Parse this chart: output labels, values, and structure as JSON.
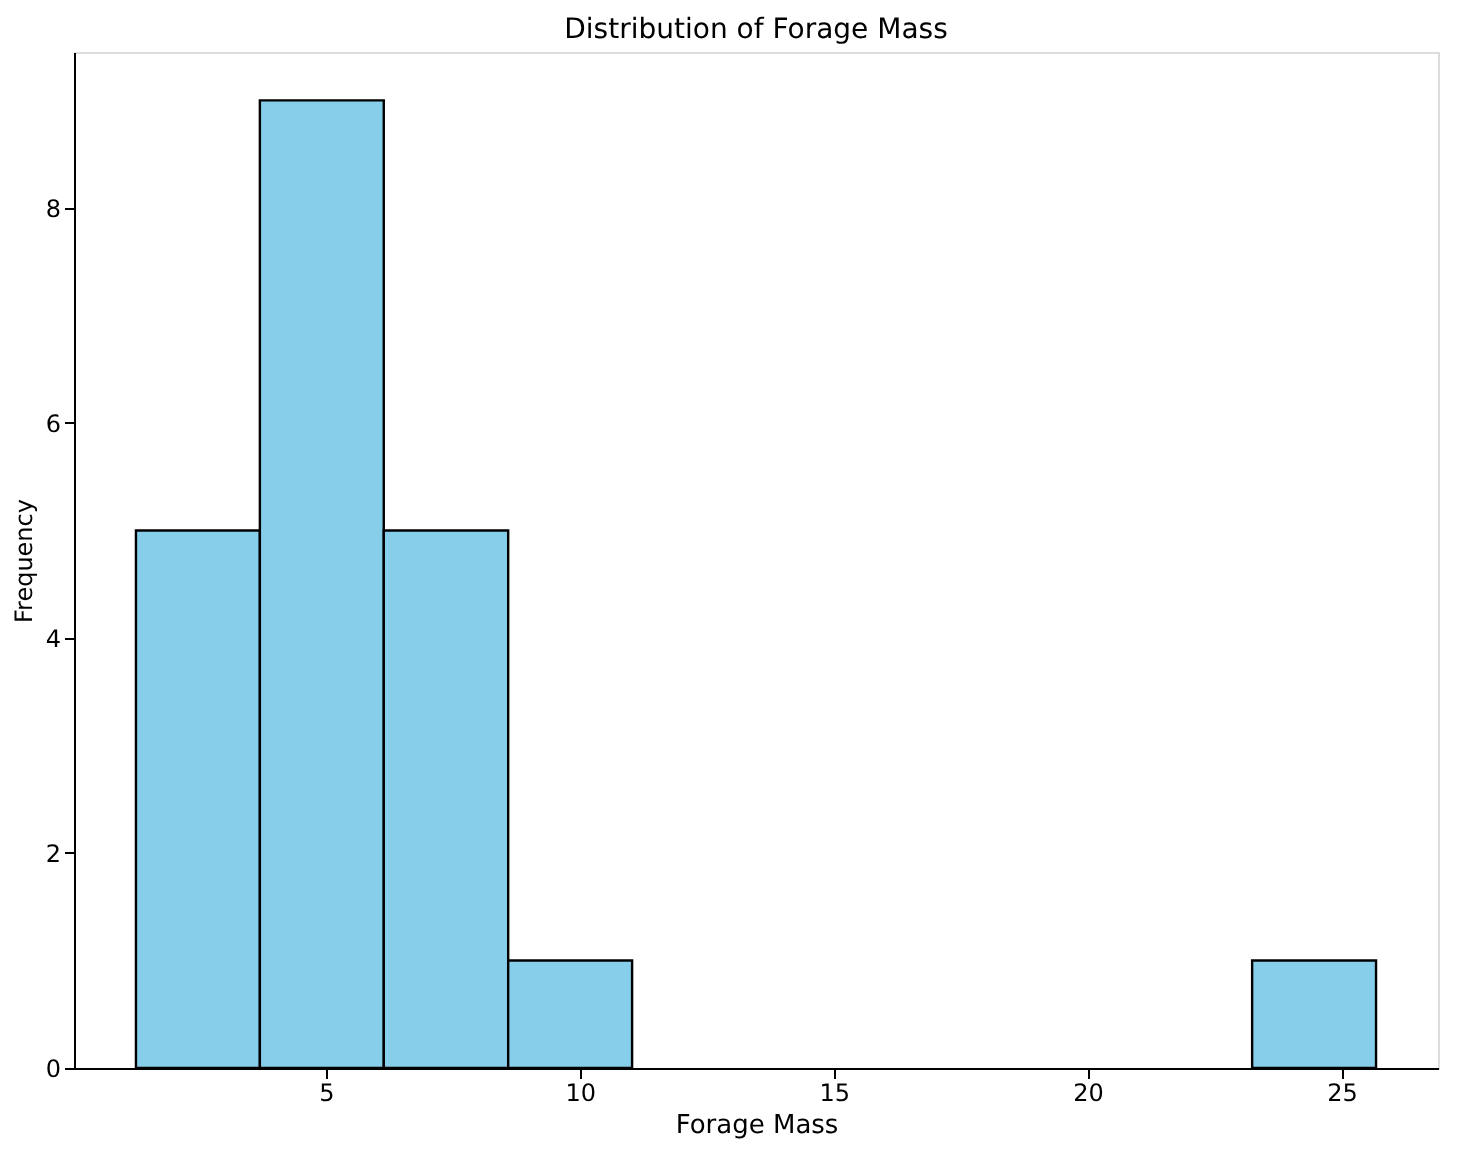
{
  "chart_data": {
    "type": "histogram",
    "title": "Distribution of Forage Mass",
    "xlabel": "Forage Mass",
    "ylabel": "Frequency",
    "bins": [
      1.26,
      3.7,
      6.14,
      8.59,
      11.03,
      23.24,
      25.68
    ],
    "values": [
      5,
      9,
      5,
      1,
      0,
      1
    ],
    "color": "#87ceeb",
    "xlim": [
      0.04,
      26.9
    ],
    "xticks": [
      5,
      10,
      15,
      20,
      25
    ],
    "ylim": [
      0,
      9.45
    ],
    "yticks": [
      0,
      2,
      4,
      6,
      8
    ],
    "grid": false,
    "legend": false
  }
}
